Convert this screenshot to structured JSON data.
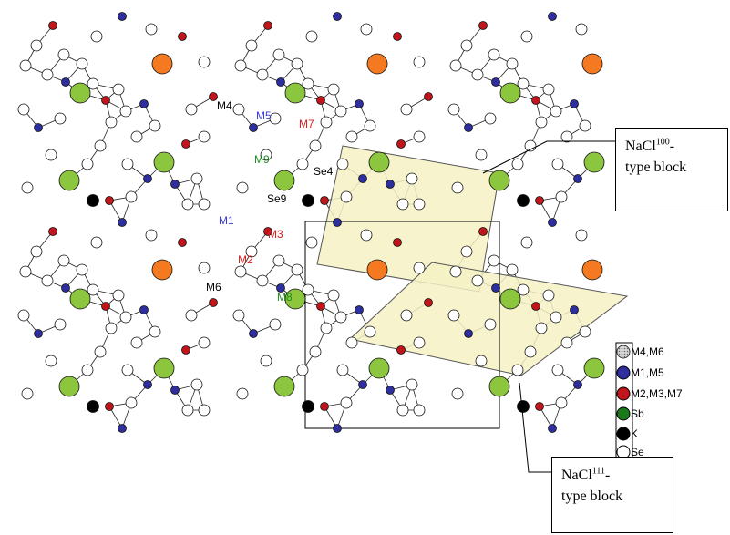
{
  "site_labels": [
    {
      "text": "M4",
      "color": "#000000"
    },
    {
      "text": "M5",
      "color": "#3b3bd0"
    },
    {
      "text": "M7",
      "color": "#d42020"
    },
    {
      "text": "M9",
      "color": "#228b22"
    },
    {
      "text": "Se4",
      "color": "#000000"
    },
    {
      "text": "Se9",
      "color": "#000000"
    },
    {
      "text": "M1",
      "color": "#3b3bd0"
    },
    {
      "text": "M3",
      "color": "#d42020"
    },
    {
      "text": "M2",
      "color": "#d42020"
    },
    {
      "text": "M6",
      "color": "#000000"
    },
    {
      "text": "M8",
      "color": "#228b22"
    }
  ],
  "callouts": {
    "nacl100": {
      "formula": "NaCl",
      "superscript": "100",
      "suffix": "-",
      "line2": "type block"
    },
    "nacl111": {
      "formula": "NaCl",
      "superscript": "111",
      "suffix": "-",
      "line2": "type block"
    }
  },
  "legend": [
    {
      "label": "M4,M6",
      "symbol": "hatched-circle",
      "color": "#9a9a9a"
    },
    {
      "label": "M1,M5",
      "symbol": "filled-circle",
      "color": "#2e2e9e"
    },
    {
      "label": "M2,M3,M7",
      "symbol": "filled-circle",
      "color": "#c0161b"
    },
    {
      "label": "Sb",
      "symbol": "filled-circle",
      "color": "#1a7a1a"
    },
    {
      "label": "K",
      "symbol": "filled-circle",
      "color": "#000000"
    },
    {
      "label": "Se",
      "symbol": "open-circle",
      "color": "#ffffff"
    }
  ],
  "colors": {
    "sb_atom": "#8cc63f",
    "heavy_atom": "#f47920",
    "blue_atom": "#2e2e9e",
    "red_atom": "#c0161b",
    "k_atom": "#000000",
    "se_atom": "#ffffff",
    "block_fill": "#f5f2c8",
    "mixed_atom": "#c9c99a"
  }
}
